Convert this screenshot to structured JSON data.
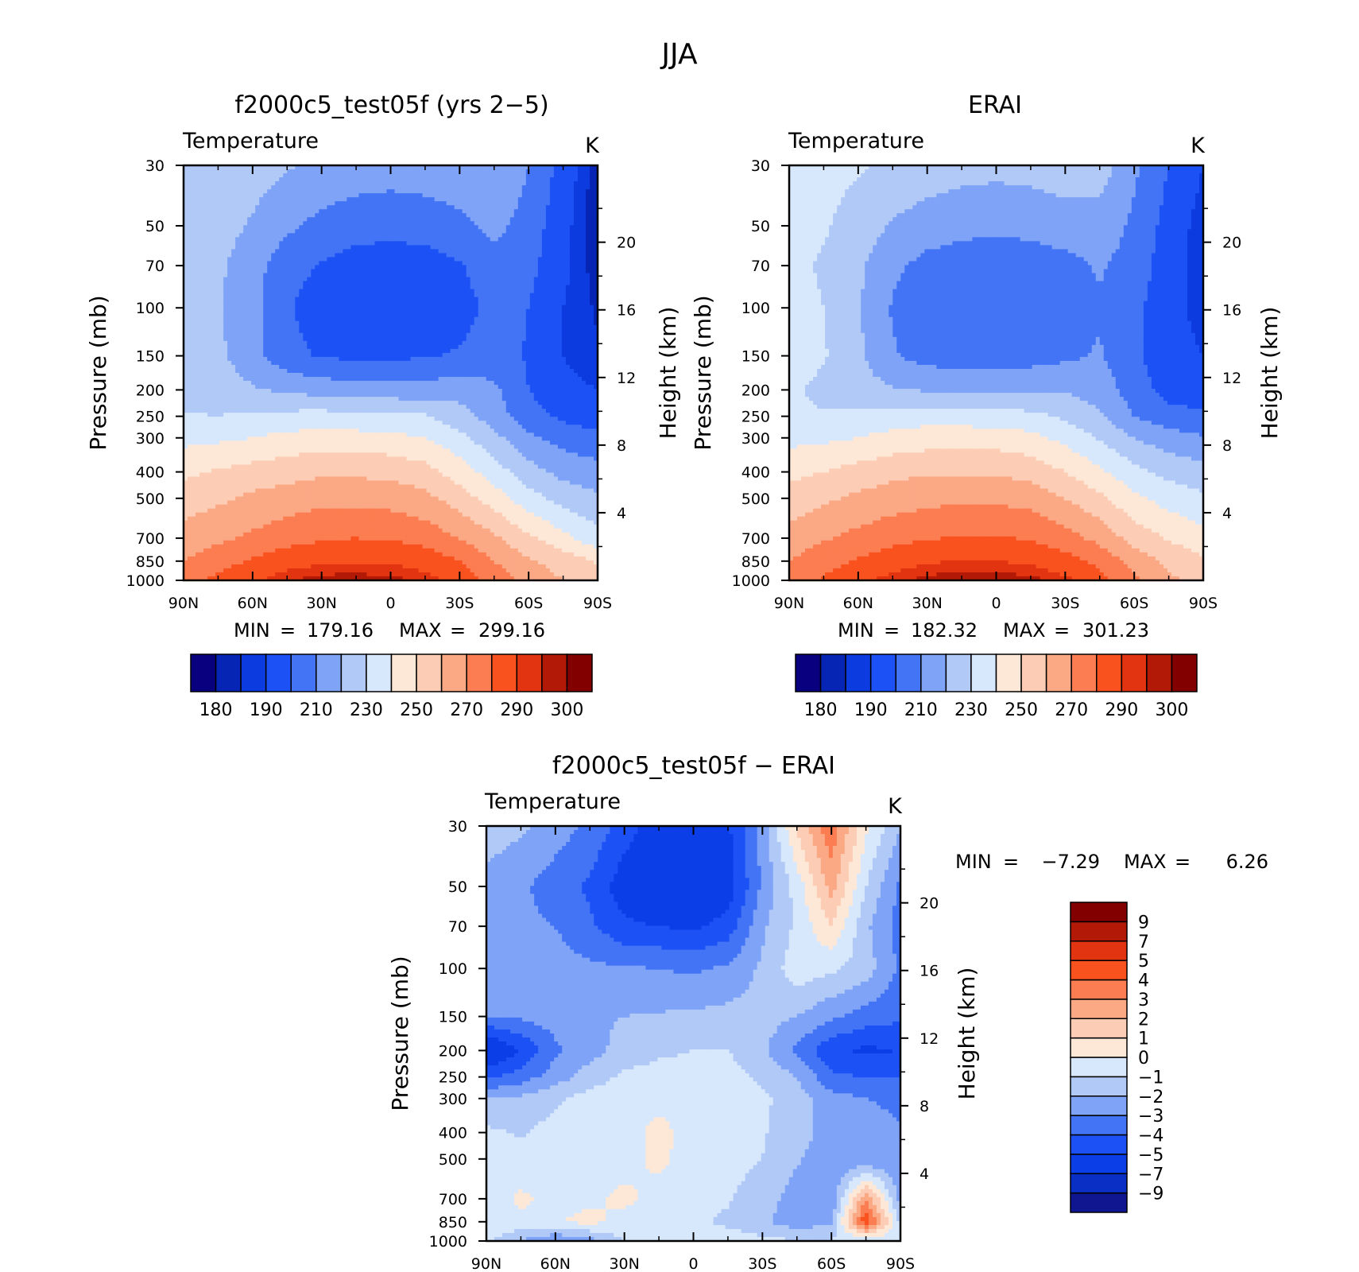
{
  "figure": {
    "season": "JJA"
  },
  "panels": {
    "model": {
      "title": "f2000c5_test05f (yrs 2−5)",
      "variable": "Temperature",
      "unit": "K",
      "min_label": "MIN",
      "min_value": "179.16",
      "max_label": "MAX",
      "max_value": "299.16",
      "ylabel": "Pressure (mb)",
      "ylabel2": "Height (km)"
    },
    "obs": {
      "title": "ERAI",
      "variable": "Temperature",
      "unit": "K",
      "min_label": "MIN",
      "min_value": "182.32",
      "max_label": "MAX",
      "max_value": "301.23",
      "ylabel": "Pressure (mb)",
      "ylabel2": "Height (km)"
    },
    "diff": {
      "title": "f2000c5_test05f − ERAI",
      "variable": "Temperature",
      "unit": "K",
      "min_label": "MIN",
      "min_value": "−7.29",
      "max_label": "MAX",
      "max_value": "6.26",
      "ylabel": "Pressure (mb)",
      "ylabel2": "Height (km)"
    }
  },
  "colors": {
    "abs_palette": [
      "#08007f",
      "#0625b4",
      "#0c3be0",
      "#1c52f5",
      "#4274f5",
      "#7ea3f7",
      "#b1c9f7",
      "#d8e8fc",
      "#fde8d8",
      "#fcccb4",
      "#fba985",
      "#fb7d51",
      "#fa521f",
      "#e23410",
      "#b21a07",
      "#820000"
    ],
    "diff_palette": [
      "#0f1690",
      "#0a2fc4",
      "#0c3ee8",
      "#1c52f5",
      "#4274f5",
      "#7ea3f7",
      "#b1c9f7",
      "#d8e8fc",
      "#fde8d8",
      "#fcccb4",
      "#fba985",
      "#fb7d51",
      "#fa521f",
      "#e23410",
      "#b21a07",
      "#820000"
    ]
  },
  "chart_data": [
    {
      "type": "heatmap",
      "title": "f2000c5_test05f (yrs 2−5)",
      "subtitle": "Temperature",
      "units": "K",
      "x_ticks": [
        "90N",
        "60N",
        "30N",
        "0",
        "30S",
        "60S",
        "90S"
      ],
      "y_ticks": [
        30,
        50,
        70,
        100,
        150,
        200,
        250,
        300,
        400,
        500,
        700,
        850,
        1000
      ],
      "y2_ticks": [
        4,
        8,
        12,
        16,
        20
      ],
      "xlim": [
        90,
        -90
      ],
      "ylim": [
        1000,
        30
      ],
      "y_scale": "log",
      "ylabel": "Pressure (mb)",
      "y2label": "Height (km)",
      "contour_levels": [
        180,
        185,
        190,
        200,
        210,
        220,
        230,
        240,
        250,
        260,
        270,
        280,
        290,
        295,
        300
      ],
      "colorbar_labels": [
        180,
        190,
        210,
        230,
        250,
        270,
        290,
        300
      ],
      "min": 179.16,
      "max": 299.16,
      "lat": [
        90,
        75,
        60,
        45,
        30,
        15,
        0,
        -15,
        -30,
        -45,
        -60,
        -75,
        -90
      ],
      "plev": [
        30,
        50,
        70,
        100,
        150,
        200,
        250,
        300,
        400,
        500,
        700,
        850,
        1000
      ],
      "values": [
        [
          226,
          226,
          224,
          221,
          218,
          216,
          215,
          216,
          218,
          220,
          210,
          196,
          181
        ],
        [
          225,
          224,
          219,
          212,
          207,
          204,
          203,
          204,
          207,
          213,
          206,
          193,
          181
        ],
        [
          224,
          222,
          214,
          204,
          199,
          196,
          195,
          196,
          199,
          206,
          203,
          192,
          182
        ],
        [
          223,
          221,
          213,
          201,
          195,
          193,
          193,
          193,
          196,
          203,
          200,
          190,
          184
        ],
        [
          224,
          222,
          214,
          203,
          199,
          198,
          198,
          199,
          201,
          205,
          199,
          190,
          186
        ],
        [
          226,
          225,
          221,
          218,
          216,
          214,
          214,
          214,
          216,
          212,
          200,
          192,
          190
        ],
        [
          231,
          230,
          232,
          233,
          234,
          232,
          232,
          231,
          224,
          215,
          204,
          198,
          194
        ],
        [
          237,
          238,
          240,
          243,
          244,
          244,
          243,
          240,
          233,
          223,
          212,
          206,
          203
        ],
        [
          248,
          251,
          254,
          256,
          258,
          258,
          257,
          254,
          245,
          235,
          224,
          217,
          214
        ],
        [
          255,
          258,
          262,
          265,
          267,
          267,
          266,
          263,
          255,
          245,
          234,
          226,
          222
        ],
        [
          264,
          268,
          272,
          276,
          279,
          280,
          279,
          276,
          270,
          262,
          252,
          243,
          233
        ],
        [
          270,
          276,
          281,
          286,
          288,
          289,
          289,
          286,
          280,
          270,
          261,
          256,
          249
        ],
        [
          277,
          282,
          289,
          294,
          298,
          298,
          297,
          293,
          286,
          276,
          266,
          260,
          256
        ]
      ]
    },
    {
      "type": "heatmap",
      "title": "ERAI",
      "subtitle": "Temperature",
      "units": "K",
      "x_ticks": [
        "90N",
        "60N",
        "30N",
        "0",
        "30S",
        "60S",
        "90S"
      ],
      "y_ticks": [
        30,
        50,
        70,
        100,
        150,
        200,
        250,
        300,
        400,
        500,
        700,
        850,
        1000
      ],
      "y2_ticks": [
        4,
        8,
        12,
        16,
        20
      ],
      "xlim": [
        90,
        -90
      ],
      "ylim": [
        1000,
        30
      ],
      "y_scale": "log",
      "ylabel": "Pressure (mb)",
      "y2label": "Height (km)",
      "contour_levels": [
        180,
        185,
        190,
        200,
        210,
        220,
        230,
        240,
        250,
        260,
        270,
        280,
        290,
        295,
        300
      ],
      "colorbar_labels": [
        180,
        190,
        210,
        230,
        250,
        270,
        290,
        300
      ],
      "min": 182.32,
      "max": 301.23,
      "lat": [
        90,
        75,
        60,
        45,
        30,
        15,
        0,
        -15,
        -30,
        -45,
        -60,
        -75,
        -90
      ],
      "plev": [
        30,
        50,
        70,
        100,
        150,
        200,
        250,
        300,
        400,
        500,
        700,
        850,
        1000
      ],
      "values": [
        [
          234,
          233,
          231,
          228,
          226,
          224,
          223,
          224,
          226,
          225,
          212,
          200,
          190
        ],
        [
          233,
          231,
          226,
          219,
          215,
          213,
          212,
          213,
          215,
          216,
          208,
          196,
          186
        ],
        [
          232,
          229,
          222,
          212,
          207,
          205,
          204,
          205,
          207,
          211,
          206,
          194,
          186
        ],
        [
          234,
          230,
          221,
          209,
          204,
          202,
          202,
          202,
          205,
          209,
          203,
          193,
          187
        ],
        [
          236,
          231,
          222,
          211,
          206,
          205,
          205,
          206,
          208,
          211,
          202,
          194,
          190
        ],
        [
          232,
          227,
          224,
          221,
          219,
          218,
          217,
          218,
          219,
          216,
          205,
          196,
          194
        ],
        [
          233,
          231,
          233,
          235,
          236,
          235,
          234,
          233,
          228,
          221,
          210,
          204,
          202
        ],
        [
          237,
          238,
          240,
          243,
          245,
          246,
          245,
          243,
          237,
          229,
          220,
          214,
          211
        ],
        [
          247,
          250,
          254,
          257,
          259,
          259,
          259,
          256,
          250,
          242,
          233,
          227,
          224
        ],
        [
          254,
          258,
          262,
          265,
          267,
          268,
          268,
          266,
          260,
          252,
          242,
          236,
          232
        ],
        [
          264,
          269,
          273,
          277,
          279,
          281,
          281,
          279,
          274,
          267,
          256,
          249,
          243
        ],
        [
          270,
          276,
          281,
          286,
          289,
          290,
          290,
          288,
          284,
          277,
          266,
          258,
          252
        ],
        [
          275,
          281,
          288,
          293,
          297,
          299,
          299,
          297,
          292,
          284,
          272,
          262,
          256
        ]
      ]
    },
    {
      "type": "heatmap",
      "title": "f2000c5_test05f − ERAI",
      "subtitle": "Temperature",
      "units": "K",
      "x_ticks": [
        "90N",
        "60N",
        "30N",
        "0",
        "30S",
        "60S",
        "90S"
      ],
      "y_ticks": [
        30,
        50,
        70,
        100,
        150,
        200,
        250,
        300,
        400,
        500,
        700,
        850,
        1000
      ],
      "y2_ticks": [
        4,
        8,
        12,
        16,
        20
      ],
      "xlim": [
        90,
        -90
      ],
      "ylim": [
        1000,
        30
      ],
      "y_scale": "log",
      "ylabel": "Pressure (mb)",
      "y2label": "Height (km)",
      "contour_levels": [
        -9,
        -7,
        -5,
        -4,
        -3,
        -2,
        -1,
        0,
        1,
        2,
        3,
        4,
        5,
        7,
        9
      ],
      "colorbar_labels": [
        9,
        7,
        5,
        4,
        3,
        2,
        1,
        0,
        -1,
        -2,
        -3,
        -4,
        -5,
        -7,
        -9
      ],
      "min": -7.29,
      "max": 6.26,
      "lat": [
        90,
        75,
        60,
        45,
        30,
        15,
        0,
        -15,
        -30,
        -45,
        -60,
        -75,
        -90
      ],
      "plev": [
        30,
        50,
        70,
        100,
        150,
        200,
        250,
        300,
        400,
        500,
        700,
        850,
        1000
      ],
      "values": [
        [
          -1.5,
          -1.8,
          -2.5,
          -3.2,
          -4.5,
          -5.6,
          -5.8,
          -5.2,
          -2.6,
          1.2,
          3.8,
          0.2,
          -2.0
        ],
        [
          -2.3,
          -2.8,
          -3.5,
          -4.2,
          -5.6,
          -6.2,
          -6.0,
          -5.6,
          -2.8,
          -0.6,
          2.4,
          -1.0,
          -3.2
        ],
        [
          -2.2,
          -2.8,
          -3.0,
          -3.8,
          -4.8,
          -5.0,
          -5.2,
          -4.6,
          -2.2,
          -0.8,
          1.0,
          -1.8,
          -3.5
        ],
        [
          -2.5,
          -2.6,
          -2.6,
          -2.8,
          -2.9,
          -3.0,
          -3.2,
          -2.8,
          -1.8,
          -0.4,
          -0.8,
          -1.5,
          -3.2
        ],
        [
          -3.0,
          -2.8,
          -2.5,
          -2.2,
          -2.0,
          -1.9,
          -1.8,
          -1.7,
          -1.6,
          -2.0,
          -2.8,
          -3.5,
          -3.8
        ],
        [
          -6.5,
          -5.0,
          -3.2,
          -2.4,
          -1.6,
          -1.2,
          -1.0,
          -1.0,
          -1.8,
          -3.2,
          -4.8,
          -5.2,
          -5.0
        ],
        [
          -4.2,
          -3.5,
          -2.5,
          -1.5,
          -0.8,
          -0.6,
          -0.6,
          -0.6,
          -1.2,
          -2.0,
          -3.8,
          -4.0,
          -4.0
        ],
        [
          -2.0,
          -1.8,
          -1.2,
          -0.6,
          -0.4,
          -0.3,
          -0.3,
          -0.3,
          -0.8,
          -1.5,
          -2.6,
          -3.0,
          -3.2
        ],
        [
          -0.8,
          -1.1,
          -0.6,
          -0.4,
          -0.4,
          0.3,
          -0.4,
          -0.5,
          -0.9,
          -1.6,
          -2.4,
          -2.6,
          -2.9
        ],
        [
          -0.6,
          -0.7,
          -0.5,
          -0.4,
          -0.3,
          0.2,
          -0.4,
          -0.6,
          -1.0,
          -1.9,
          -2.6,
          -3.0,
          -2.8
        ],
        [
          -0.6,
          0.2,
          -0.4,
          -0.2,
          0.2,
          -0.3,
          -0.4,
          -0.9,
          -1.6,
          -2.4,
          -2.9,
          3.0,
          -2.5
        ],
        [
          -0.4,
          -0.2,
          -0.1,
          0.3,
          -0.3,
          -0.5,
          -0.8,
          -1.2,
          -1.8,
          -2.6,
          -2.2,
          5.0,
          -1.2
        ],
        [
          -0.8,
          -2.0,
          -3.0,
          -2.4,
          -1.0,
          -0.6,
          -0.5,
          -0.5,
          -0.7,
          -0.9,
          -0.9,
          -0.9,
          -0.9
        ]
      ]
    }
  ]
}
